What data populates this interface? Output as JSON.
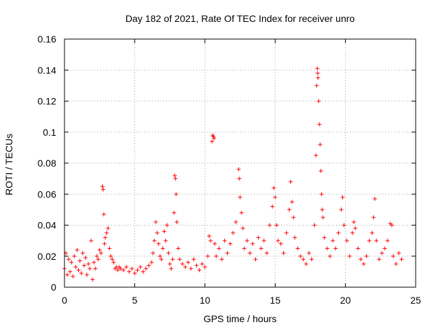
{
  "chart_data": {
    "type": "scatter",
    "title": "Day 182 of 2021, Rate Of TEC Index for receiver unro",
    "xlabel": "GPS time / hours",
    "ylabel": "ROTI / TECUs",
    "xlim": [
      0,
      25
    ],
    "ylim": [
      0,
      0.16
    ],
    "xticks": [
      0,
      5,
      10,
      15,
      20,
      25
    ],
    "xtick_labels": [
      "0",
      "5",
      "10",
      "15",
      "20",
      "25"
    ],
    "yticks": [
      0,
      0.02,
      0.04,
      0.06,
      0.08,
      0.1,
      0.12,
      0.14,
      0.16
    ],
    "ytick_labels": [
      "0",
      "0.02",
      "0.04",
      "0.06",
      "0.08",
      "0.1",
      "0.12",
      "0.14",
      "0.16"
    ],
    "grid": true,
    "marker": "+",
    "color": "#ff0000",
    "series": [
      {
        "name": "ROTI",
        "points": [
          [
            0.0,
            0.012
          ],
          [
            0.1,
            0.022
          ],
          [
            0.2,
            0.008
          ],
          [
            0.3,
            0.018
          ],
          [
            0.4,
            0.01
          ],
          [
            0.5,
            0.016
          ],
          [
            0.6,
            0.007
          ],
          [
            0.7,
            0.02
          ],
          [
            0.8,
            0.013
          ],
          [
            0.9,
            0.024
          ],
          [
            1.0,
            0.011
          ],
          [
            1.1,
            0.017
          ],
          [
            1.2,
            0.009
          ],
          [
            1.3,
            0.022
          ],
          [
            1.4,
            0.014
          ],
          [
            1.5,
            0.019
          ],
          [
            1.6,
            0.008
          ],
          [
            1.7,
            0.015
          ],
          [
            1.8,
            0.012
          ],
          [
            1.9,
            0.03
          ],
          [
            2.0,
            0.005
          ],
          [
            2.1,
            0.016
          ],
          [
            2.2,
            0.012
          ],
          [
            2.3,
            0.02
          ],
          [
            2.4,
            0.018
          ],
          [
            2.5,
            0.024
          ],
          [
            2.6,
            0.022
          ],
          [
            2.7,
            0.065
          ],
          [
            2.75,
            0.063
          ],
          [
            2.8,
            0.047
          ],
          [
            2.85,
            0.028
          ],
          [
            2.9,
            0.032
          ],
          [
            3.0,
            0.035
          ],
          [
            3.1,
            0.038
          ],
          [
            3.2,
            0.025
          ],
          [
            3.3,
            0.02
          ],
          [
            3.4,
            0.018
          ],
          [
            3.5,
            0.016
          ],
          [
            3.6,
            0.012
          ],
          [
            3.7,
            0.013
          ],
          [
            3.8,
            0.011
          ],
          [
            3.9,
            0.013
          ],
          [
            4.0,
            0.012
          ],
          [
            4.2,
            0.011
          ],
          [
            4.4,
            0.013
          ],
          [
            4.6,
            0.01
          ],
          [
            4.8,
            0.012
          ],
          [
            5.0,
            0.009
          ],
          [
            5.2,
            0.011
          ],
          [
            5.4,
            0.013
          ],
          [
            5.6,
            0.01
          ],
          [
            5.8,
            0.012
          ],
          [
            6.0,
            0.014
          ],
          [
            6.2,
            0.016
          ],
          [
            6.3,
            0.022
          ],
          [
            6.4,
            0.03
          ],
          [
            6.5,
            0.042
          ],
          [
            6.6,
            0.035
          ],
          [
            6.7,
            0.028
          ],
          [
            6.8,
            0.02
          ],
          [
            6.9,
            0.018
          ],
          [
            7.0,
            0.025
          ],
          [
            7.1,
            0.036
          ],
          [
            7.2,
            0.03
          ],
          [
            7.3,
            0.04
          ],
          [
            7.4,
            0.022
          ],
          [
            7.5,
            0.015
          ],
          [
            7.6,
            0.012
          ],
          [
            7.7,
            0.018
          ],
          [
            7.8,
            0.048
          ],
          [
            7.85,
            0.072
          ],
          [
            7.9,
            0.07
          ],
          [
            7.95,
            0.06
          ],
          [
            8.0,
            0.042
          ],
          [
            8.1,
            0.025
          ],
          [
            8.2,
            0.018
          ],
          [
            8.4,
            0.015
          ],
          [
            8.6,
            0.013
          ],
          [
            8.8,
            0.016
          ],
          [
            9.0,
            0.012
          ],
          [
            9.2,
            0.018
          ],
          [
            9.4,
            0.014
          ],
          [
            9.6,
            0.011
          ],
          [
            9.8,
            0.015
          ],
          [
            10.0,
            0.013
          ],
          [
            10.2,
            0.02
          ],
          [
            10.3,
            0.033
          ],
          [
            10.4,
            0.03
          ],
          [
            10.5,
            0.094
          ],
          [
            10.55,
            0.098
          ],
          [
            10.6,
            0.097
          ],
          [
            10.65,
            0.096
          ],
          [
            10.7,
            0.028
          ],
          [
            10.8,
            0.02
          ],
          [
            11.0,
            0.025
          ],
          [
            11.2,
            0.018
          ],
          [
            11.4,
            0.03
          ],
          [
            11.6,
            0.022
          ],
          [
            11.8,
            0.028
          ],
          [
            12.0,
            0.035
          ],
          [
            12.2,
            0.042
          ],
          [
            12.4,
            0.076
          ],
          [
            12.45,
            0.07
          ],
          [
            12.5,
            0.058
          ],
          [
            12.6,
            0.048
          ],
          [
            12.7,
            0.038
          ],
          [
            12.8,
            0.025
          ],
          [
            13.0,
            0.03
          ],
          [
            13.2,
            0.022
          ],
          [
            13.4,
            0.028
          ],
          [
            13.6,
            0.018
          ],
          [
            13.8,
            0.032
          ],
          [
            14.0,
            0.025
          ],
          [
            14.2,
            0.03
          ],
          [
            14.4,
            0.022
          ],
          [
            14.6,
            0.04
          ],
          [
            14.8,
            0.052
          ],
          [
            14.9,
            0.064
          ],
          [
            15.0,
            0.058
          ],
          [
            15.1,
            0.04
          ],
          [
            15.2,
            0.03
          ],
          [
            15.4,
            0.028
          ],
          [
            15.6,
            0.022
          ],
          [
            15.8,
            0.035
          ],
          [
            16.0,
            0.05
          ],
          [
            16.1,
            0.068
          ],
          [
            16.2,
            0.055
          ],
          [
            16.3,
            0.045
          ],
          [
            16.4,
            0.032
          ],
          [
            16.6,
            0.025
          ],
          [
            16.8,
            0.02
          ],
          [
            17.0,
            0.018
          ],
          [
            17.2,
            0.015
          ],
          [
            17.4,
            0.022
          ],
          [
            17.6,
            0.018
          ],
          [
            17.8,
            0.04
          ],
          [
            17.9,
            0.085
          ],
          [
            17.95,
            0.13
          ],
          [
            18.0,
            0.141
          ],
          [
            18.02,
            0.138
          ],
          [
            18.05,
            0.135
          ],
          [
            18.1,
            0.12
          ],
          [
            18.15,
            0.105
          ],
          [
            18.2,
            0.092
          ],
          [
            18.25,
            0.075
          ],
          [
            18.3,
            0.06
          ],
          [
            18.35,
            0.05
          ],
          [
            18.4,
            0.045
          ],
          [
            18.5,
            0.032
          ],
          [
            18.7,
            0.025
          ],
          [
            18.9,
            0.02
          ],
          [
            19.1,
            0.03
          ],
          [
            19.3,
            0.025
          ],
          [
            19.5,
            0.035
          ],
          [
            19.7,
            0.05
          ],
          [
            19.8,
            0.058
          ],
          [
            19.9,
            0.04
          ],
          [
            20.1,
            0.03
          ],
          [
            20.3,
            0.02
          ],
          [
            20.5,
            0.035
          ],
          [
            20.6,
            0.042
          ],
          [
            20.7,
            0.038
          ],
          [
            20.9,
            0.025
          ],
          [
            21.1,
            0.018
          ],
          [
            21.3,
            0.015
          ],
          [
            21.5,
            0.02
          ],
          [
            21.7,
            0.03
          ],
          [
            21.9,
            0.035
          ],
          [
            22.0,
            0.045
          ],
          [
            22.1,
            0.057
          ],
          [
            22.2,
            0.03
          ],
          [
            22.4,
            0.018
          ],
          [
            22.6,
            0.022
          ],
          [
            22.8,
            0.025
          ],
          [
            23.0,
            0.03
          ],
          [
            23.2,
            0.041
          ],
          [
            23.3,
            0.04
          ],
          [
            23.4,
            0.02
          ],
          [
            23.6,
            0.015
          ],
          [
            23.8,
            0.022
          ],
          [
            24.0,
            0.018
          ]
        ]
      }
    ]
  }
}
